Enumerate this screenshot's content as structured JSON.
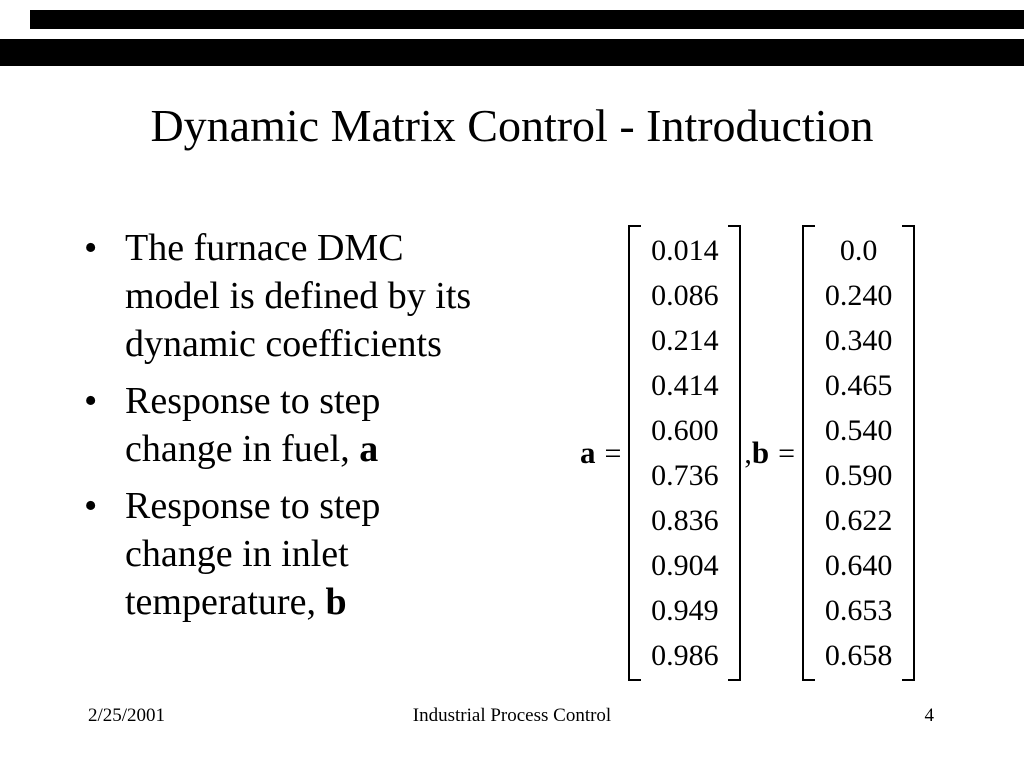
{
  "colors": {
    "background": "#ffffff",
    "bar": "#000000",
    "text": "#000000"
  },
  "slide": {
    "title": "Dynamic Matrix Control - Introduction",
    "bullet_marker": "•",
    "bullets": [
      {
        "lines": [
          {
            "text": "The furnace DMC",
            "bold": ""
          },
          {
            "text": "model is defined by its",
            "bold": ""
          },
          {
            "text": "dynamic coefficients",
            "bold": ""
          }
        ]
      },
      {
        "lines": [
          {
            "text": "Response to step",
            "bold": ""
          },
          {
            "text": "change in fuel, ",
            "bold": "a"
          }
        ]
      },
      {
        "lines": [
          {
            "text": "Response to step",
            "bold": ""
          },
          {
            "text": "change in inlet",
            "bold": ""
          },
          {
            "text": "temperature, ",
            "bold": "b"
          }
        ]
      }
    ],
    "equation": {
      "a_label": "a",
      "b_label": "b",
      "equals": "=",
      "comma": ",",
      "vector_a": [
        "0.014",
        "0.086",
        "0.214",
        "0.414",
        "0.600",
        "0.736",
        "0.836",
        "0.904",
        "0.949",
        "0.986"
      ],
      "vector_b": [
        "0.0",
        "0.240",
        "0.340",
        "0.465",
        "0.540",
        "0.590",
        "0.622",
        "0.640",
        "0.653",
        "0.658"
      ]
    },
    "footer": {
      "date": "2/25/2001",
      "title": "Industrial Process Control",
      "page_number": "4"
    }
  }
}
